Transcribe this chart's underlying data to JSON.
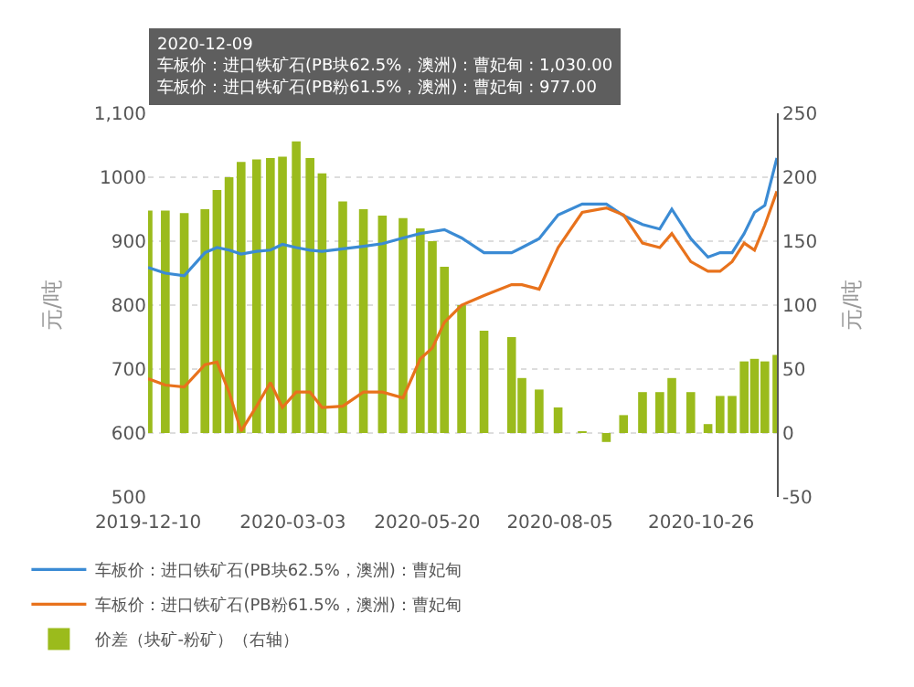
{
  "chart_data": {
    "type": "line",
    "ylabel": "元/吨",
    "y2label": "元/吨",
    "x": [
      "2019-12-10",
      "2019-12-20",
      "2019-12-31",
      "2020-01-12",
      "2020-01-19",
      "2020-01-26",
      "2020-02-02",
      "2020-02-11",
      "2020-02-19",
      "2020-02-26",
      "2020-03-05",
      "2020-03-13",
      "2020-03-20",
      "2020-04-01",
      "2020-04-13",
      "2020-04-24",
      "2020-05-06",
      "2020-05-16",
      "2020-05-23",
      "2020-05-30",
      "2020-06-09",
      "2020-06-22",
      "2020-07-08",
      "2020-07-14",
      "2020-07-24",
      "2020-08-04",
      "2020-08-18",
      "2020-09-01",
      "2020-09-11",
      "2020-09-22",
      "2020-10-02",
      "2020-10-09",
      "2020-10-20",
      "2020-10-30",
      "2020-11-06",
      "2020-11-13",
      "2020-11-20",
      "2020-11-26",
      "2020-12-02",
      "2020-12-09"
    ],
    "series": [
      {
        "name": "车板价：进口铁矿石(PB块62.5%，澳洲)：曹妃甸",
        "color": "#3b8bd4",
        "values": [
          859,
          850,
          846,
          882,
          890,
          886,
          880,
          884,
          886,
          895,
          890,
          886,
          884,
          888,
          892,
          896,
          905,
          912,
          915,
          918,
          905,
          882,
          882,
          890,
          904,
          941,
          958,
          958,
          940,
          926,
          919,
          950,
          904,
          875,
          882,
          882,
          912,
          945,
          956,
          1030
        ]
      },
      {
        "name": "车板价：进口铁矿石(PB粉61.5%，澳洲)：曹妃甸",
        "color": "#e8721c",
        "values": [
          685,
          675,
          672,
          707,
          711,
          664,
          603,
          642,
          679,
          640,
          664,
          664,
          640,
          642,
          664,
          664,
          655,
          716,
          733,
          773,
          800,
          815,
          832,
          832,
          825,
          890,
          945,
          952,
          941,
          897,
          890,
          912,
          868,
          853,
          853,
          868,
          897,
          886,
          925,
          978
        ]
      },
      {
        "name": "价差（块矿-粉矿）（右轴）",
        "type": "bar",
        "axis": "y2",
        "color": "#9bbb1c",
        "values": [
          174,
          174,
          172,
          175,
          190,
          200,
          212,
          214,
          215,
          216,
          228,
          215,
          203,
          181,
          175,
          170,
          168,
          160,
          150,
          130,
          100,
          80,
          75,
          43,
          34,
          20,
          1,
          -7,
          14,
          32,
          32,
          43,
          32,
          7,
          29,
          29,
          56,
          58,
          56,
          61
        ]
      }
    ],
    "xlim": [
      "2019-12-10",
      "2020-12-09"
    ],
    "xticks": [
      {
        "value": "2019-12-10",
        "label": "2019-12-10"
      },
      {
        "value": "2020-03-03",
        "label": "2020-03-03"
      },
      {
        "value": "2020-05-20",
        "label": "2020-05-20"
      },
      {
        "value": "2020-08-05",
        "label": "2020-08-05"
      },
      {
        "value": "2020-10-26",
        "label": "2020-10-26"
      }
    ],
    "ylim": [
      500,
      1100
    ],
    "yticks": [
      500,
      600,
      700,
      800,
      900,
      1000,
      {
        "value": 1100,
        "label": "1,100"
      }
    ],
    "y2lim": [
      -50,
      250
    ],
    "y2ticks": [
      -50,
      0,
      50,
      100,
      150,
      200,
      250
    ],
    "grid": "y",
    "legend": "bottom",
    "line_style": "solid",
    "marker": "none",
    "annotations": [
      "2020-12-09",
      "车板价：进口铁矿石(PB块62.5%，澳洲)：曹妃甸 : 1,030.00",
      "车板价：进口铁矿石(PB粉61.5%，澳洲)：曹妃甸 : 977.00"
    ]
  }
}
